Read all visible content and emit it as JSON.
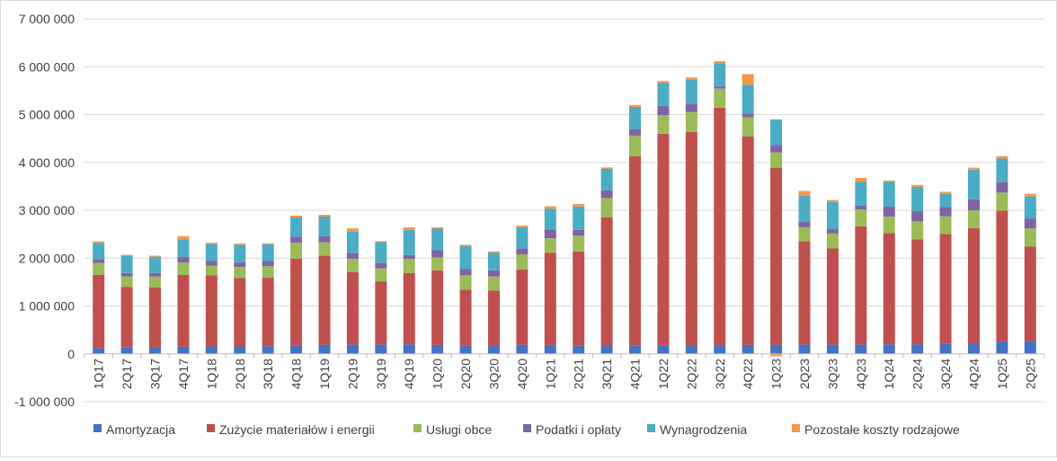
{
  "chart_data": {
    "type": "bar",
    "stacked": true,
    "title": "",
    "xlabel": "",
    "ylabel": "",
    "ylim": [
      -1000000,
      7000000
    ],
    "y_ticks": [
      -1000000,
      0,
      1000000,
      2000000,
      3000000,
      4000000,
      5000000,
      6000000,
      7000000
    ],
    "y_tick_labels": [
      "-1 000 000",
      "0",
      "1 000 000",
      "2 000 000",
      "3 000 000",
      "4 000 000",
      "5 000 000",
      "6 000 000",
      "7 000 000"
    ],
    "grid": true,
    "legend_position": "bottom",
    "categories": [
      "1Q17",
      "2Q17",
      "3Q17",
      "4Q17",
      "1Q18",
      "2Q18",
      "3Q18",
      "4Q18",
      "1Q19",
      "2Q19",
      "3Q19",
      "4Q19",
      "1Q20",
      "2Q20",
      "3Q20",
      "4Q20",
      "1Q21",
      "2Q21",
      "3Q21",
      "4Q21",
      "1Q22",
      "2Q22",
      "3Q22",
      "4Q22",
      "1Q23",
      "2Q23",
      "3Q23",
      "4Q23",
      "1Q24",
      "2Q24",
      "3Q24",
      "4Q24",
      "1Q25",
      "2Q25"
    ],
    "series": [
      {
        "name": "Amortyzacja",
        "color": "#4472c4",
        "values": [
          120000,
          130000,
          135000,
          150000,
          155000,
          155000,
          160000,
          170000,
          190000,
          195000,
          195000,
          195000,
          185000,
          180000,
          175000,
          190000,
          185000,
          180000,
          175000,
          180000,
          180000,
          175000,
          175000,
          185000,
          190000,
          195000,
          195000,
          195000,
          195000,
          200000,
          205000,
          220000,
          260000,
          270000
        ]
      },
      {
        "name": "Zużycie materiałów i energii",
        "color": "#c0504d",
        "values": [
          1530000,
          1270000,
          1250000,
          1500000,
          1490000,
          1430000,
          1430000,
          1820000,
          1860000,
          1510000,
          1320000,
          1490000,
          1560000,
          1160000,
          1150000,
          1570000,
          1930000,
          1960000,
          2680000,
          3950000,
          4420000,
          4460000,
          4970000,
          4360000,
          3700000,
          2160000,
          2010000,
          2470000,
          2330000,
          2190000,
          2300000,
          2410000,
          2730000,
          1970000
        ]
      },
      {
        "name": "Usługi obce",
        "color": "#9bbb59",
        "values": [
          250000,
          220000,
          230000,
          260000,
          200000,
          230000,
          240000,
          330000,
          280000,
          280000,
          270000,
          300000,
          270000,
          300000,
          290000,
          320000,
          300000,
          330000,
          400000,
          430000,
          390000,
          420000,
          400000,
          400000,
          320000,
          290000,
          310000,
          350000,
          340000,
          380000,
          370000,
          370000,
          380000,
          380000
        ]
      },
      {
        "name": "Podatki i opłaty",
        "color": "#8064a2",
        "values": [
          80000,
          70000,
          75000,
          120000,
          100000,
          100000,
          110000,
          130000,
          130000,
          120000,
          120000,
          80000,
          150000,
          130000,
          130000,
          120000,
          180000,
          120000,
          160000,
          130000,
          190000,
          160000,
          50000,
          80000,
          150000,
          110000,
          90000,
          80000,
          210000,
          210000,
          190000,
          230000,
          220000,
          210000
        ]
      },
      {
        "name": "Wynagrodzenia",
        "color": "#4bacc6",
        "values": [
          340000,
          360000,
          340000,
          360000,
          350000,
          360000,
          350000,
          400000,
          410000,
          450000,
          430000,
          520000,
          450000,
          480000,
          370000,
          450000,
          440000,
          490000,
          450000,
          470000,
          480000,
          520000,
          480000,
          600000,
          540000,
          550000,
          570000,
          500000,
          520000,
          510000,
          280000,
          620000,
          490000,
          460000
        ]
      },
      {
        "name": "Pozostałe koszty rodzajowe",
        "color": "#f79646",
        "values": [
          30000,
          20000,
          20000,
          70000,
          25000,
          30000,
          20000,
          40000,
          35000,
          65000,
          20000,
          60000,
          30000,
          30000,
          25000,
          30000,
          50000,
          50000,
          30000,
          40000,
          40000,
          40000,
          40000,
          220000,
          -50000,
          100000,
          40000,
          80000,
          25000,
          40000,
          40000,
          40000,
          50000,
          55000
        ]
      }
    ]
  }
}
